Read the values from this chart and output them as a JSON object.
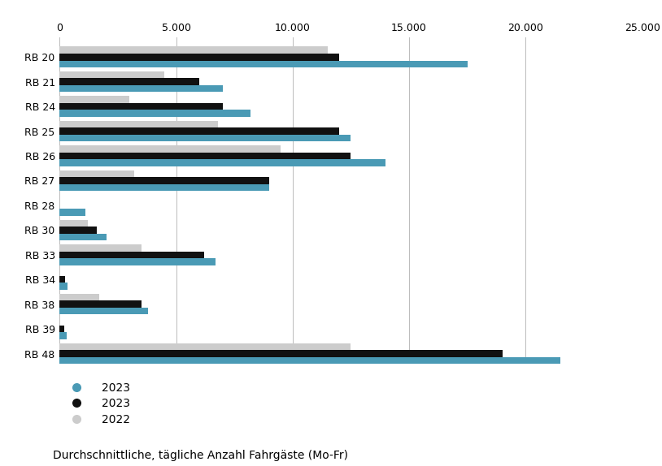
{
  "categories": [
    "RB 20",
    "RB 21",
    "RB 24",
    "RB 25",
    "RB 26",
    "RB 27",
    "RB 28",
    "RB 30",
    "RB 33",
    "RB 34",
    "RB 38",
    "RB 39",
    "RB 48"
  ],
  "values_teal": [
    17500,
    7000,
    8200,
    12500,
    14000,
    9000,
    1100,
    2000,
    6700,
    350,
    3800,
    300,
    21500
  ],
  "values_black": [
    12000,
    6000,
    7000,
    12000,
    12500,
    9000,
    0,
    1600,
    6200,
    250,
    3500,
    200,
    19000
  ],
  "values_gray": [
    11500,
    4500,
    3000,
    6800,
    9500,
    3200,
    0,
    1200,
    3500,
    0,
    1700,
    0,
    12500
  ],
  "color_teal": "#4a9ab5",
  "color_black": "#111111",
  "color_gray": "#cccccc",
  "xlabel": "Durchschnittliche, tägliche Anzahl Fahrgäste (Mo-Fr)",
  "xlim": [
    0,
    25000
  ],
  "xticks": [
    0,
    5000,
    10000,
    15000,
    20000,
    25000
  ],
  "xtick_labels": [
    "0",
    "5.000",
    "10.000",
    "15.000",
    "20.000",
    "25.000"
  ],
  "legend_labels": [
    "2023",
    "2023",
    "2022"
  ],
  "bar_height": 0.28,
  "background_color": "#ffffff"
}
